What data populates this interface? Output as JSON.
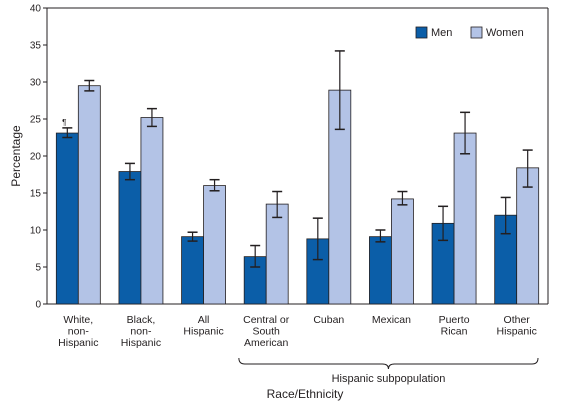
{
  "chart_data": {
    "type": "bar",
    "categories": [
      [
        "White,",
        "non-",
        "Hispanic"
      ],
      [
        "Black,",
        "non-",
        "Hispanic"
      ],
      [
        "All",
        "Hispanic"
      ],
      [
        "Central or",
        "South",
        "American"
      ],
      [
        "Cuban"
      ],
      [
        "Mexican"
      ],
      [
        "Puerto",
        "Rican"
      ],
      [
        "Other",
        "Hispanic"
      ]
    ],
    "series": [
      {
        "name": "Men",
        "color": "#0b5ea8",
        "values": [
          23.1,
          17.9,
          9.1,
          6.4,
          8.8,
          9.1,
          10.9,
          12.0
        ],
        "ci_low": [
          22.5,
          16.8,
          8.5,
          5.0,
          6.0,
          8.4,
          8.6,
          9.5
        ],
        "ci_high": [
          23.8,
          19.0,
          9.7,
          7.9,
          11.6,
          10.0,
          13.2,
          14.4
        ]
      },
      {
        "name": "Women",
        "color": "#b3c3e6",
        "values": [
          29.5,
          25.2,
          16.0,
          13.5,
          28.9,
          14.2,
          23.1,
          18.4
        ],
        "ci_low": [
          28.8,
          24.0,
          15.3,
          11.7,
          23.6,
          13.4,
          20.3,
          15.8
        ],
        "ci_high": [
          30.2,
          26.4,
          16.8,
          15.2,
          34.2,
          15.2,
          25.9,
          20.8
        ]
      }
    ],
    "annotations": [
      {
        "category_index": 0,
        "series_index": 0,
        "text": "¶"
      }
    ],
    "ylabel": "Percentage",
    "xlabel": "Race/Ethnicity",
    "ylim": [
      0,
      40
    ],
    "yticks": [
      0,
      5,
      10,
      15,
      20,
      25,
      30,
      35,
      40
    ],
    "grid": false,
    "legend": "top-right",
    "bracket": {
      "label": "Hispanic subpopulation",
      "from_category": 3,
      "to_category": 7
    }
  }
}
